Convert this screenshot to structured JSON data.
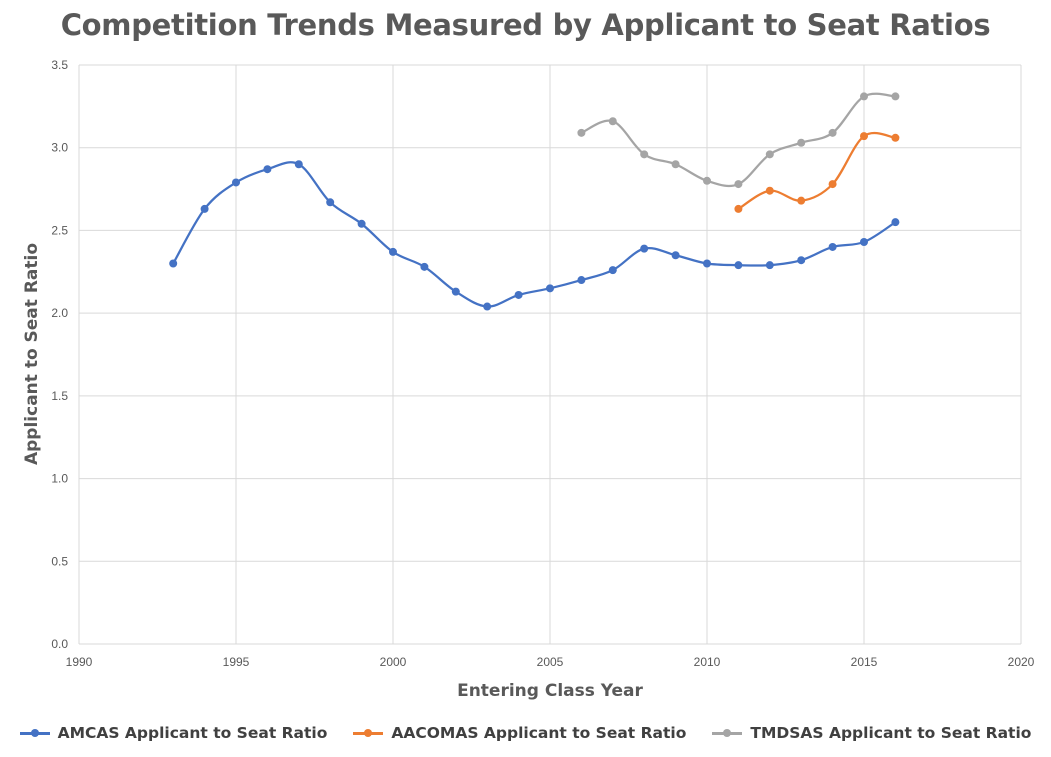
{
  "chart_data": {
    "type": "line",
    "title": "Competition Trends Measured by Applicant to Seat Ratios",
    "xlabel": "Entering Class Year",
    "ylabel": "Applicant to Seat Ratio",
    "xlim": [
      1990,
      2020
    ],
    "ylim": [
      0,
      3.5
    ],
    "xticks": [
      1990,
      1995,
      2000,
      2005,
      2010,
      2015,
      2020
    ],
    "yticks": [
      "0.0",
      "0.5",
      "1.0",
      "1.5",
      "2.0",
      "2.5",
      "3.0",
      "3.5"
    ],
    "grid": true,
    "smooth": true,
    "legend_position": "bottom",
    "series": [
      {
        "name": "AMCAS Applicant to Seat Ratio",
        "color": "#4472C4",
        "x": [
          1993,
          1994,
          1995,
          1996,
          1997,
          1998,
          1999,
          2000,
          2001,
          2002,
          2003,
          2004,
          2005,
          2006,
          2007,
          2008,
          2009,
          2010,
          2011,
          2012,
          2013,
          2014,
          2015,
          2016
        ],
        "y": [
          2.3,
          2.63,
          2.79,
          2.87,
          2.9,
          2.67,
          2.54,
          2.37,
          2.28,
          2.13,
          2.04,
          2.11,
          2.15,
          2.2,
          2.26,
          2.39,
          2.35,
          2.3,
          2.29,
          2.29,
          2.32,
          2.4,
          2.43,
          2.55
        ]
      },
      {
        "name": "AACOMAS Applicant to Seat Ratio",
        "color": "#ED7D31",
        "x": [
          2011,
          2012,
          2013,
          2014,
          2015,
          2016
        ],
        "y": [
          2.63,
          2.74,
          2.68,
          2.78,
          3.07,
          3.06
        ]
      },
      {
        "name": "TMDSAS Applicant to Seat Ratio",
        "color": "#A5A5A5",
        "x": [
          2006,
          2007,
          2008,
          2009,
          2010,
          2011,
          2012,
          2013,
          2014,
          2015,
          2016
        ],
        "y": [
          3.09,
          3.16,
          2.96,
          2.9,
          2.8,
          2.78,
          2.96,
          3.03,
          3.09,
          3.31,
          3.31
        ]
      }
    ]
  }
}
